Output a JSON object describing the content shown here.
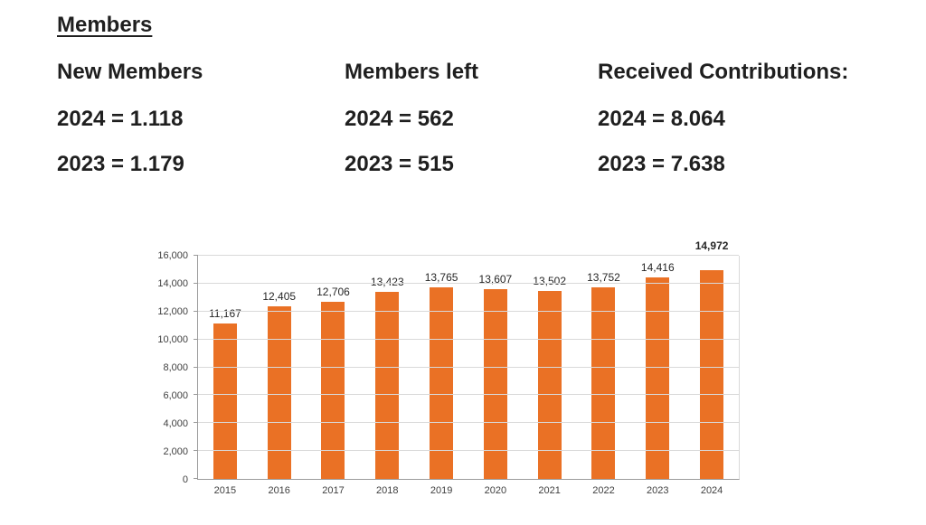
{
  "title": "Members",
  "stats": [
    {
      "header": "New Members",
      "line1": "2024 = 1.118",
      "line2": "2023 = 1.179"
    },
    {
      "header": "Members left",
      "line1": "2024 = 562",
      "line2": "2023 = 515"
    },
    {
      "header": "Received Contributions:",
      "line1": "2024 = 8.064",
      "line2": "2023 = 7.638"
    }
  ],
  "chart_data": {
    "type": "bar",
    "categories": [
      "2015",
      "2016",
      "2017",
      "2018",
      "2019",
      "2020",
      "2021",
      "2022",
      "2023",
      "2024"
    ],
    "values": [
      11167,
      12405,
      12706,
      13423,
      13765,
      13607,
      13502,
      13752,
      14416,
      14972
    ],
    "value_labels": [
      "11,167",
      "12,405",
      "12,706",
      "13,423",
      "13,765",
      "13,607",
      "13,502",
      "13,752",
      "14,416",
      "14,972"
    ],
    "title": "",
    "xlabel": "",
    "ylabel": "",
    "ylim": [
      0,
      16000
    ],
    "ytick_step": 2000,
    "yticks": [
      "0",
      "2,000",
      "4,000",
      "6,000",
      "8,000",
      "10,000",
      "12,000",
      "14,000",
      "16,000"
    ],
    "grid": true,
    "legend": "none",
    "bar_color": "#EA7125"
  },
  "colors": {
    "bar": "#EA7125",
    "text": "#262626",
    "grid": "#d9d9d9",
    "axis": "#9b9b9b"
  }
}
